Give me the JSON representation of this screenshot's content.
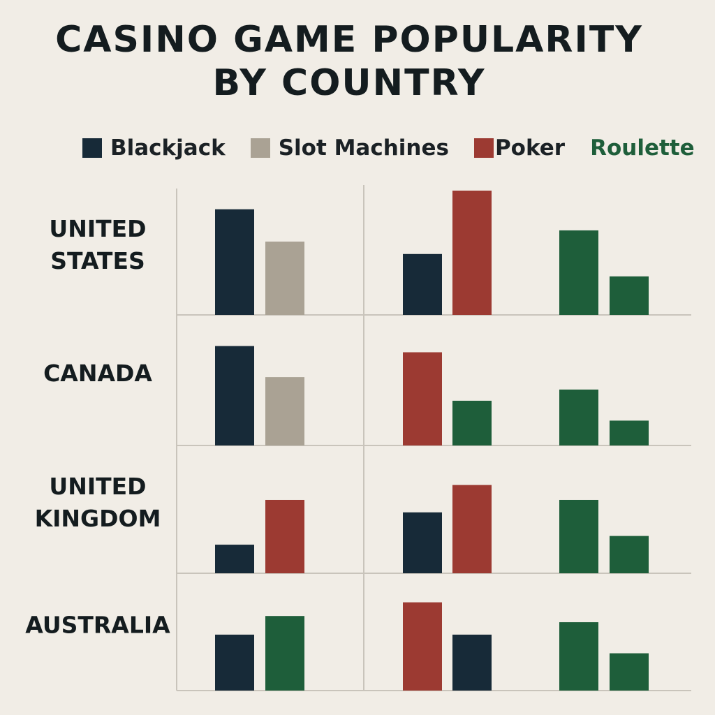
{
  "chart_data": {
    "type": "bar",
    "title_lines": [
      "CASINO GAME POPULARITY",
      "BY COUNTRY"
    ],
    "legend": [
      {
        "key": "blackjack",
        "label": "Blackjack",
        "color": "#172a38",
        "swatch": true,
        "label_color": "#1b2125"
      },
      {
        "key": "slot_machines",
        "label": "Slot Machines",
        "color": "#aaa294",
        "swatch": true,
        "label_color": "#1b2125"
      },
      {
        "key": "poker",
        "label": "Poker",
        "color": "#9c3a32",
        "swatch": true,
        "label_color": "#1b2125"
      },
      {
        "key": "roulette",
        "label": "Roulette",
        "color": "#1e5e3a",
        "swatch": false,
        "label_color": "#1e5e3a"
      }
    ],
    "rows": [
      {
        "country_lines": [
          "UNITED",
          "STATES"
        ],
        "panels": [
          [
            {
              "game": "blackjack",
              "value": 85
            },
            {
              "game": "slot_machines",
              "value": 59
            }
          ],
          [
            {
              "game": "blackjack",
              "value": 49
            },
            {
              "game": "poker",
              "value": 100
            }
          ],
          [
            {
              "game": "roulette",
              "value": 68
            },
            {
              "game": "roulette",
              "value": 31
            }
          ]
        ]
      },
      {
        "country_lines": [
          "CANADA"
        ],
        "panels": [
          [
            {
              "game": "blackjack",
              "value": 80
            },
            {
              "game": "slot_machines",
              "value": 55
            }
          ],
          [
            {
              "game": "poker",
              "value": 75
            },
            {
              "game": "roulette",
              "value": 36
            }
          ],
          [
            {
              "game": "roulette",
              "value": 45
            },
            {
              "game": "roulette",
              "value": 20
            }
          ]
        ]
      },
      {
        "country_lines": [
          "UNITED",
          "KINGDOM"
        ],
        "panels": [
          [
            {
              "game": "blackjack",
              "value": 23
            },
            {
              "game": "poker",
              "value": 59
            }
          ],
          [
            {
              "game": "blackjack",
              "value": 49
            },
            {
              "game": "poker",
              "value": 71
            }
          ],
          [
            {
              "game": "roulette",
              "value": 59
            },
            {
              "game": "roulette",
              "value": 30
            }
          ]
        ]
      },
      {
        "country_lines": [
          "AUSTRALIA"
        ],
        "panels": [
          [
            {
              "game": "blackjack",
              "value": 45
            },
            {
              "game": "roulette",
              "value": 60
            }
          ],
          [
            {
              "game": "poker",
              "value": 71
            },
            {
              "game": "blackjack",
              "value": 45
            }
          ],
          [
            {
              "game": "roulette",
              "value": 55
            },
            {
              "game": "roulette",
              "value": 30
            }
          ]
        ]
      }
    ],
    "grid": true
  }
}
